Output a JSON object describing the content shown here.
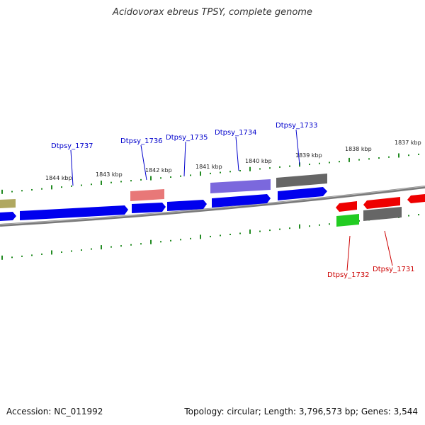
{
  "title": "Acidovorax ebreus TPSY, complete genome",
  "footer": {
    "accession": "Accession: NC_011992",
    "summary": "Topology: circular; Length: 3,796,573 bp; Genes: 3,544"
  },
  "ticks": [
    "1844 kbp",
    "1843 kbp",
    "1842 kbp",
    "1841 kbp",
    "1840 kbp",
    "1839 kbp",
    "1838 kbp",
    "1837 kbp"
  ],
  "colors": {
    "forward": "#0000ee",
    "reverse": "#ee0000",
    "label_forward": "#0000cc",
    "label_reverse": "#cc0000",
    "backbone": "#888888",
    "tick": "#228b22"
  },
  "genes_forward": [
    "Dtpsy_1737",
    "Dtpsy_1736",
    "Dtpsy_1735",
    "Dtpsy_1734",
    "Dtpsy_1733"
  ],
  "genes_reverse": [
    "Dtpsy_1732",
    "Dtpsy_1731"
  ]
}
